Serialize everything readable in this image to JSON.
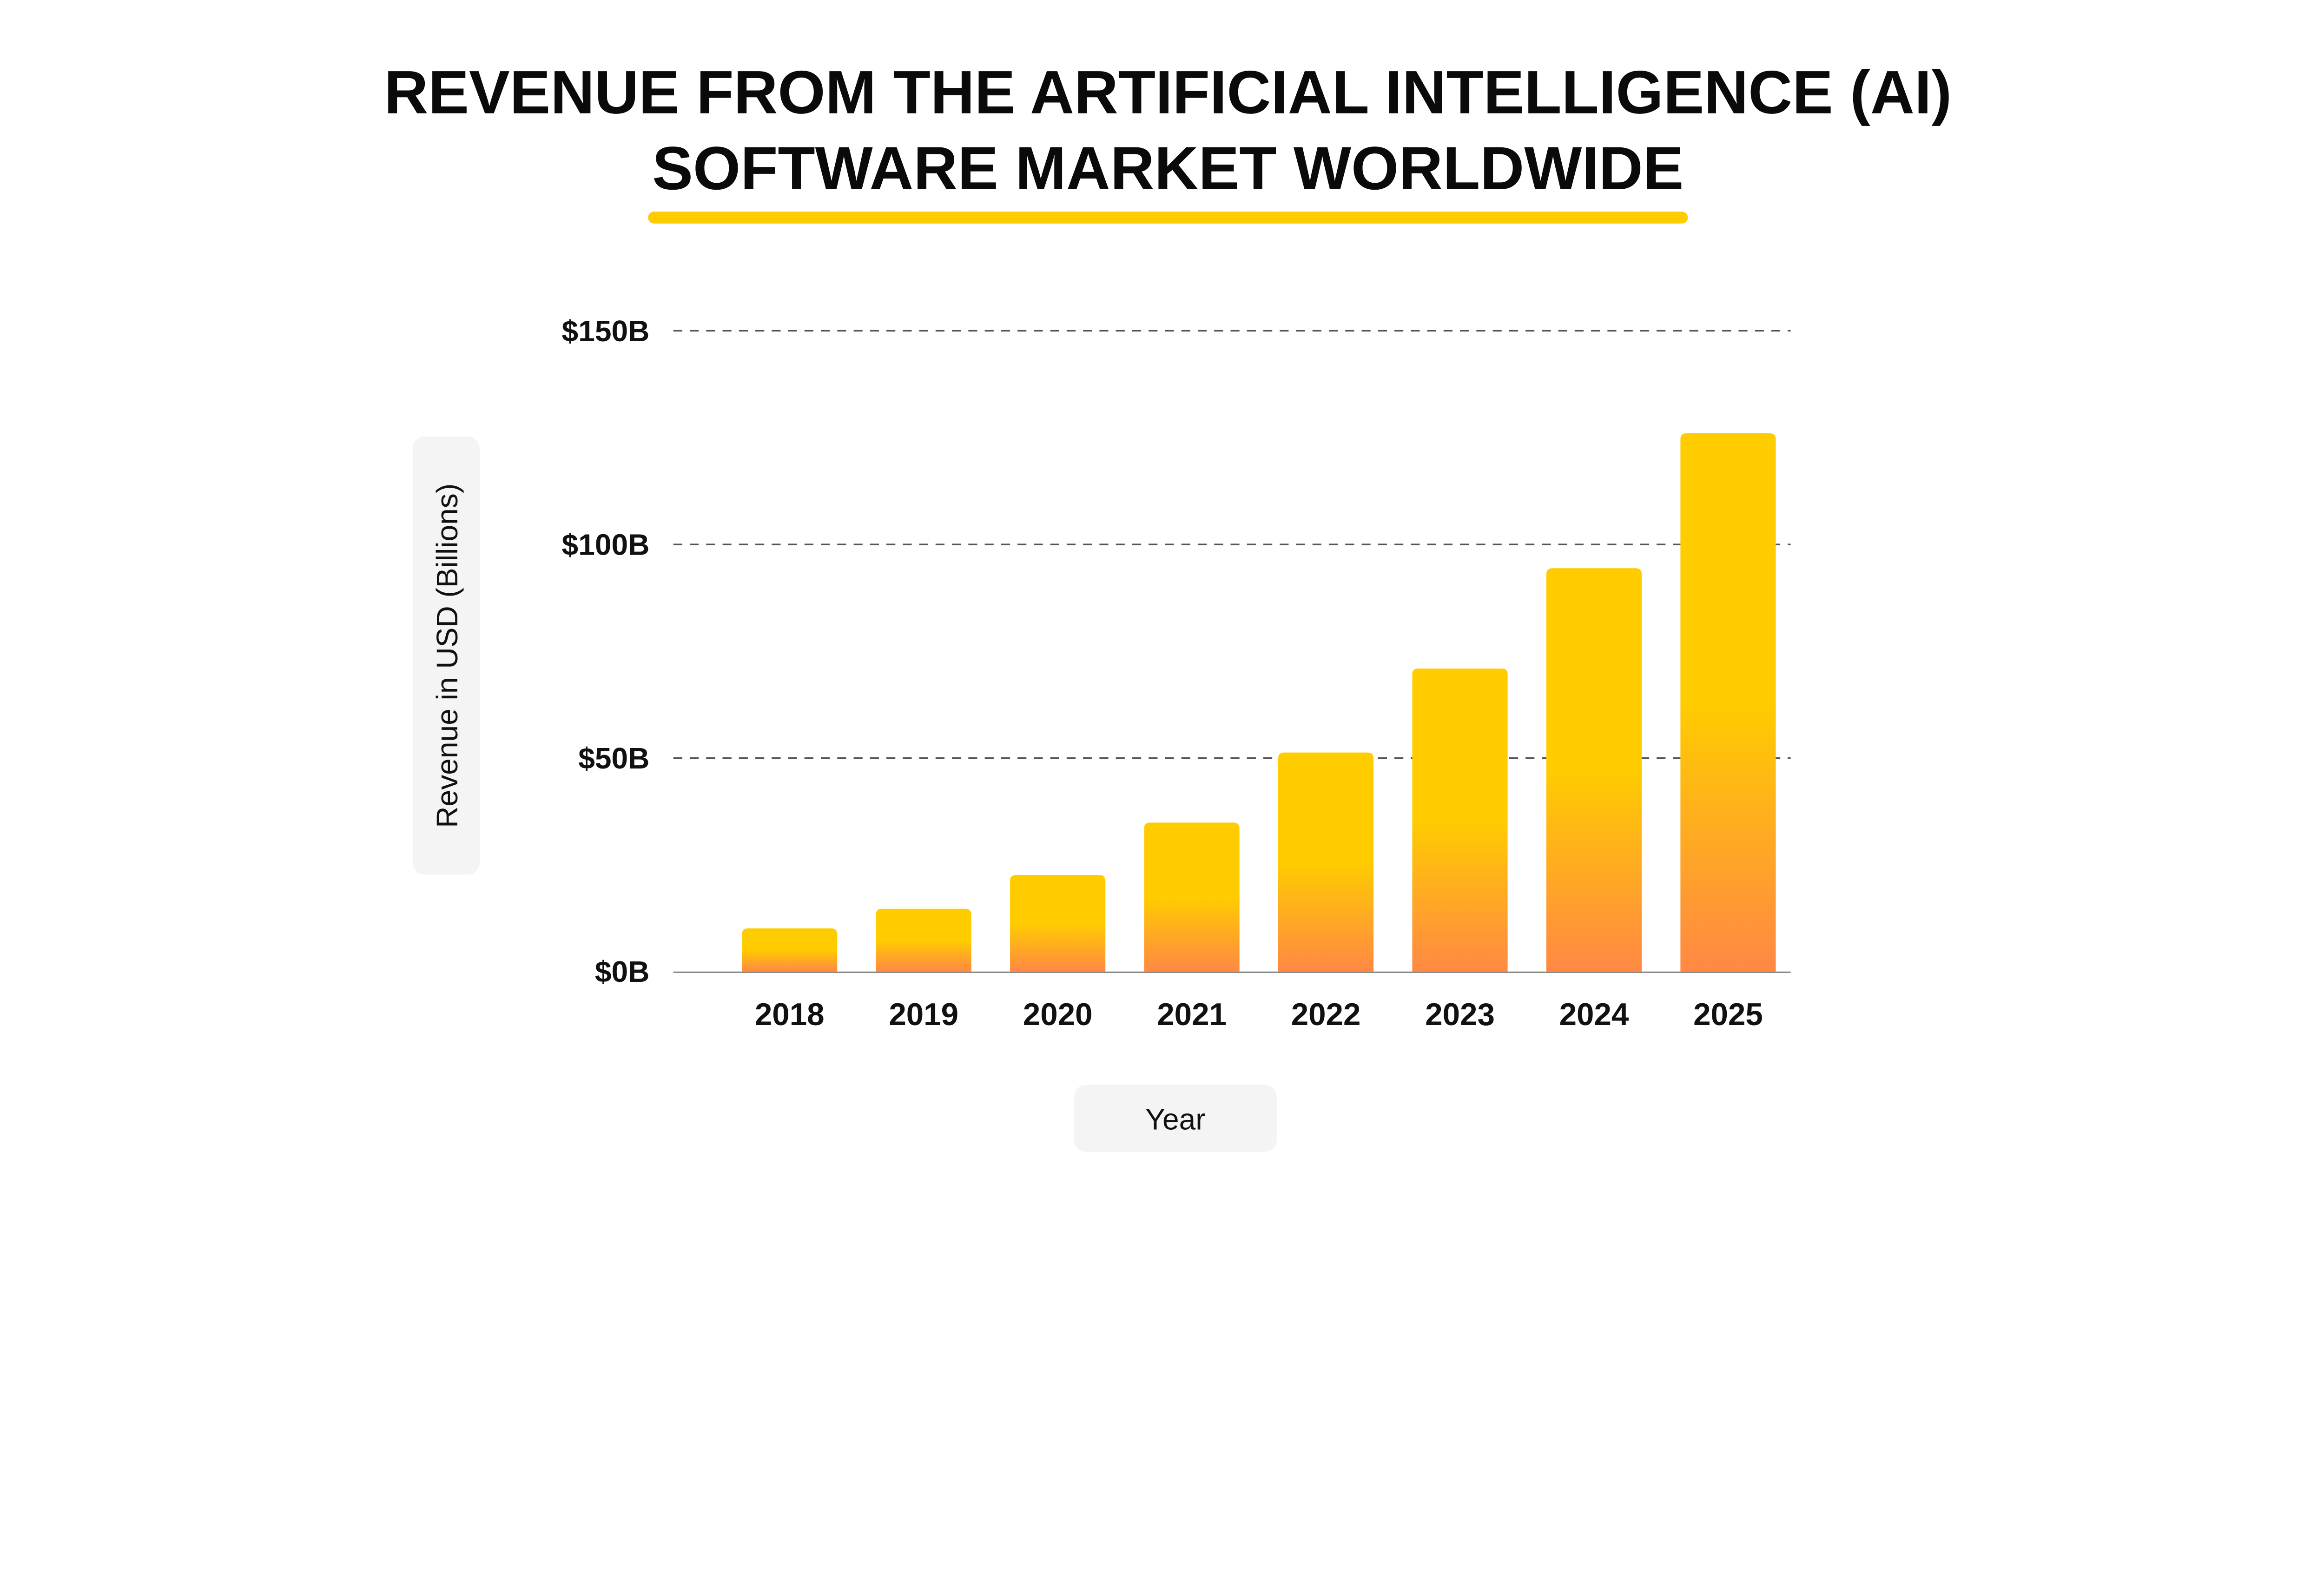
{
  "chart_data": {
    "type": "bar",
    "title_lines": [
      "REVENUE FROM THE ARTIFICIAL INTELLIGENCE (AI)",
      "SOFTWARE MARKET WORLDWIDE"
    ],
    "xlabel": "Year",
    "ylabel": "Revenue in USD (Billions)",
    "categories": [
      "2018",
      "2019",
      "2020",
      "2021",
      "2022",
      "2023",
      "2024",
      "2025"
    ],
    "values": [
      10.1,
      14.69,
      22.59,
      34.87,
      51.27,
      70.94,
      94.41,
      126.0
    ],
    "ylim": [
      0,
      150
    ],
    "yticks": [
      0,
      50,
      100,
      150
    ],
    "ytick_labels": [
      "$0B",
      "$50B",
      "$100B",
      "$150B"
    ],
    "grid": true,
    "colors": {
      "bar_top": "#FFCC00",
      "bar_bottom": "#FF8844",
      "underline": "#FFCC00",
      "label_box": "#F4F4F4"
    }
  }
}
